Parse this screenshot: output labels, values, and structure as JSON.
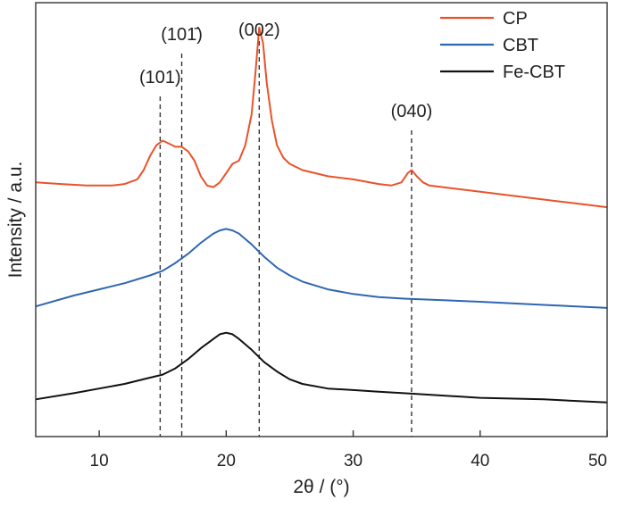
{
  "chart_data": {
    "type": "line",
    "xlabel": "2θ / (°)",
    "ylabel": "Intensity / a.u.",
    "xlim": [
      5,
      50
    ],
    "x_ticks": [
      10,
      20,
      30,
      40,
      50
    ],
    "y_ticks_shown": false,
    "grid": false,
    "legend_position": "top-right",
    "series": [
      {
        "name": "CP",
        "color": "#e8532a",
        "x": [
          5,
          7,
          9,
          11,
          12,
          13,
          13.5,
          14,
          14.5,
          15,
          15.5,
          16,
          16.5,
          17,
          17.5,
          18,
          18.5,
          19,
          19.5,
          20,
          20.5,
          21,
          21.5,
          22,
          22.3,
          22.6,
          22.9,
          23.2,
          23.6,
          24,
          24.5,
          25,
          26,
          28,
          30,
          32,
          33,
          33.8,
          34.3,
          34.6,
          35,
          35.5,
          36,
          38,
          40,
          42,
          44,
          46,
          48,
          50
        ],
        "y": [
          0.1,
          0.095,
          0.09,
          0.09,
          0.095,
          0.11,
          0.14,
          0.185,
          0.22,
          0.235,
          0.225,
          0.215,
          0.215,
          0.2,
          0.17,
          0.12,
          0.09,
          0.085,
          0.1,
          0.13,
          0.16,
          0.17,
          0.22,
          0.32,
          0.45,
          0.6,
          0.55,
          0.42,
          0.3,
          0.22,
          0.18,
          0.16,
          0.14,
          0.12,
          0.11,
          0.095,
          0.09,
          0.1,
          0.13,
          0.14,
          0.12,
          0.1,
          0.09,
          0.08,
          0.07,
          0.06,
          0.05,
          0.04,
          0.03,
          0.02
        ]
      },
      {
        "name": "CBT",
        "color": "#2e67b1",
        "x": [
          5,
          8,
          10,
          12,
          14,
          15,
          16,
          17,
          18,
          19,
          19.5,
          20,
          20.5,
          21,
          22,
          23,
          24,
          25,
          26,
          28,
          30,
          32,
          34,
          36,
          40,
          45,
          50
        ],
        "y": [
          -0.3,
          -0.265,
          -0.245,
          -0.225,
          -0.2,
          -0.185,
          -0.16,
          -0.13,
          -0.095,
          -0.065,
          -0.055,
          -0.05,
          -0.055,
          -0.065,
          -0.1,
          -0.14,
          -0.175,
          -0.2,
          -0.22,
          -0.245,
          -0.26,
          -0.27,
          -0.275,
          -0.278,
          -0.285,
          -0.295,
          -0.305
        ]
      },
      {
        "name": "Fe-CBT",
        "color": "#111111",
        "x": [
          5,
          8,
          10,
          12,
          14,
          15,
          16,
          17,
          18,
          19,
          19.5,
          20,
          20.5,
          21,
          22,
          23,
          24,
          25,
          26,
          28,
          30,
          32,
          34,
          36,
          40,
          45,
          50
        ],
        "y": [
          -0.6,
          -0.58,
          -0.565,
          -0.55,
          -0.53,
          -0.52,
          -0.5,
          -0.47,
          -0.435,
          -0.405,
          -0.39,
          -0.385,
          -0.39,
          -0.405,
          -0.44,
          -0.48,
          -0.51,
          -0.535,
          -0.55,
          -0.565,
          -0.57,
          -0.575,
          -0.58,
          -0.585,
          -0.595,
          -0.6,
          -0.61
        ]
      }
    ],
    "peaks": [
      {
        "label": "(101)",
        "x": 14.8
      },
      {
        "label": "(101̄)",
        "x": 16.5
      },
      {
        "label": "(002)",
        "x": 22.6
      },
      {
        "label": "(040)",
        "x": 34.6
      }
    ]
  }
}
